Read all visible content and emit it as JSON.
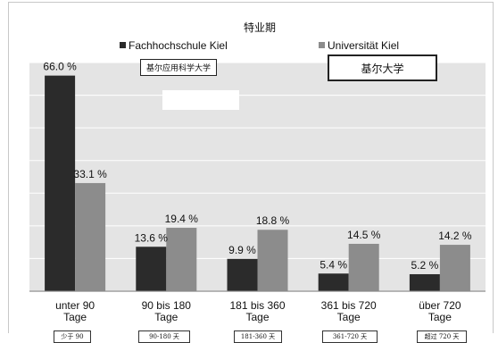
{
  "chart_data": {
    "type": "bar",
    "title": "特业期",
    "categories": [
      "unter 90\nTage",
      "90 bis 180\nTage",
      "181 bis 360\nTage",
      "361 bis 720\nTage",
      "über 720\nTage"
    ],
    "series": [
      {
        "name": "Fachhochschule Kiel",
        "values": [
          66.0,
          13.6,
          9.9,
          5.4,
          5.2
        ],
        "labels": [
          "66.0 %",
          "13.6 %",
          "9.9 %",
          "5.4 %",
          "5.2 %"
        ],
        "color": "#2b2b2b"
      },
      {
        "name": "Universität Kiel",
        "values": [
          33.1,
          19.4,
          18.8,
          14.5,
          14.2
        ],
        "labels": [
          "33.1 %",
          "19.4 %",
          "18.8 %",
          "14.5 %",
          "14.2 %"
        ],
        "color": "#8c8c8c"
      }
    ],
    "ylim": [
      0,
      70
    ],
    "grid": true,
    "legend_position": "top",
    "plot_background": "#e4e4e4"
  },
  "annotations": {
    "fh_chinese": "基尔应用科学大学",
    "uni_chinese": "基尔大学",
    "category_chinese": [
      "少于 90",
      "90-180 天",
      "181-360 天",
      "361-720 天",
      "超过 720 天"
    ]
  }
}
